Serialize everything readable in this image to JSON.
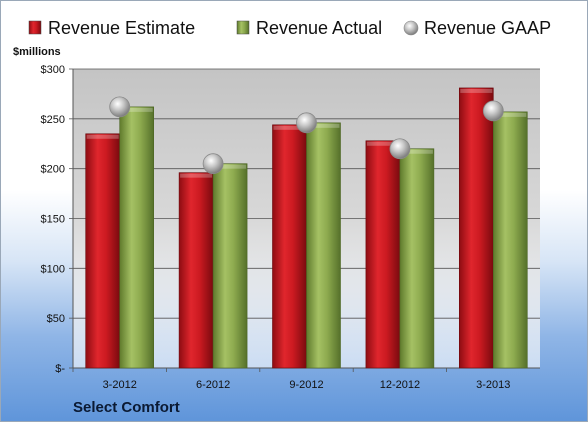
{
  "chart_data": {
    "type": "bar",
    "title": "",
    "company": "Select Comfort",
    "units_label": "$millions",
    "categories": [
      "3-2012",
      "6-2012",
      "9-2012",
      "12-2012",
      "3-2013"
    ],
    "series": [
      {
        "name": "Revenue Estimate",
        "kind": "bar",
        "color": "#c8161d",
        "values": [
          235,
          196,
          244,
          228,
          281
        ]
      },
      {
        "name": "Revenue Actual",
        "kind": "bar",
        "color": "#8caa4d",
        "values": [
          262,
          205,
          246,
          220,
          257
        ]
      },
      {
        "name": "Revenue GAAP",
        "kind": "marker",
        "color": "#b0b0b0",
        "values": [
          262,
          205,
          246,
          220,
          258
        ]
      }
    ],
    "ylim": [
      0,
      300
    ],
    "yticks": [
      0,
      50,
      100,
      150,
      200,
      250,
      300
    ],
    "ytick_labels": [
      "$-",
      "$50",
      "$100",
      "$150",
      "$200",
      "$250",
      "$300"
    ],
    "grid": true,
    "legend_position": "top"
  }
}
